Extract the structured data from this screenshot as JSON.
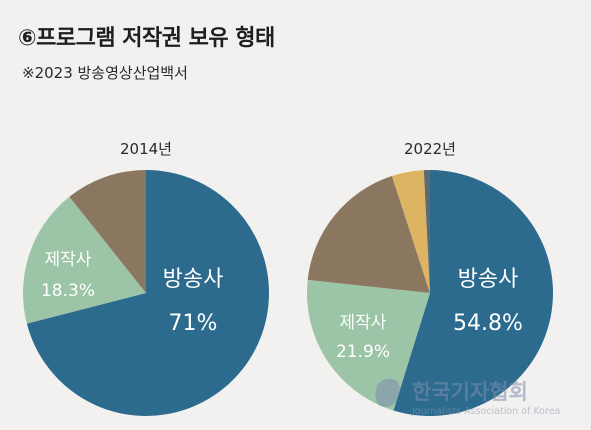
{
  "title": "⑥프로그램 저작권 보유 형태",
  "subtitle": "※2023 방송영상산업백서",
  "watermark": {
    "main": "한국기자협회",
    "sub": "Journalists Association of Korea"
  },
  "colors": {
    "broadcaster": "#2c6b8e",
    "producer": "#9cc4a6",
    "brown": "#8b7660",
    "yellow": "#ddb462",
    "dark": "#5d6a72",
    "background": "#f3f1ef"
  },
  "chart_data": [
    {
      "type": "pie",
      "title": "2014년",
      "slices": [
        {
          "name": "방송사",
          "value": 71,
          "label": "71%",
          "color": "#2c6b8e"
        },
        {
          "name": "제작사",
          "value": 18.3,
          "label": "18.3%",
          "color": "#9cc4a6"
        },
        {
          "name": "",
          "value": 10.7,
          "label": "",
          "color": "#8b7660"
        }
      ]
    },
    {
      "type": "pie",
      "title": "2022년",
      "slices": [
        {
          "name": "방송사",
          "value": 54.8,
          "label": "54.8%",
          "color": "#2c6b8e"
        },
        {
          "name": "제작사",
          "value": 21.9,
          "label": "21.9%",
          "color": "#9cc4a6"
        },
        {
          "name": "",
          "value": 18.3,
          "label": "",
          "color": "#8b7660"
        },
        {
          "name": "",
          "value": 4.2,
          "label": "",
          "color": "#ddb462"
        },
        {
          "name": "",
          "value": 0.8,
          "label": "",
          "color": "#5d6a72"
        }
      ]
    }
  ]
}
